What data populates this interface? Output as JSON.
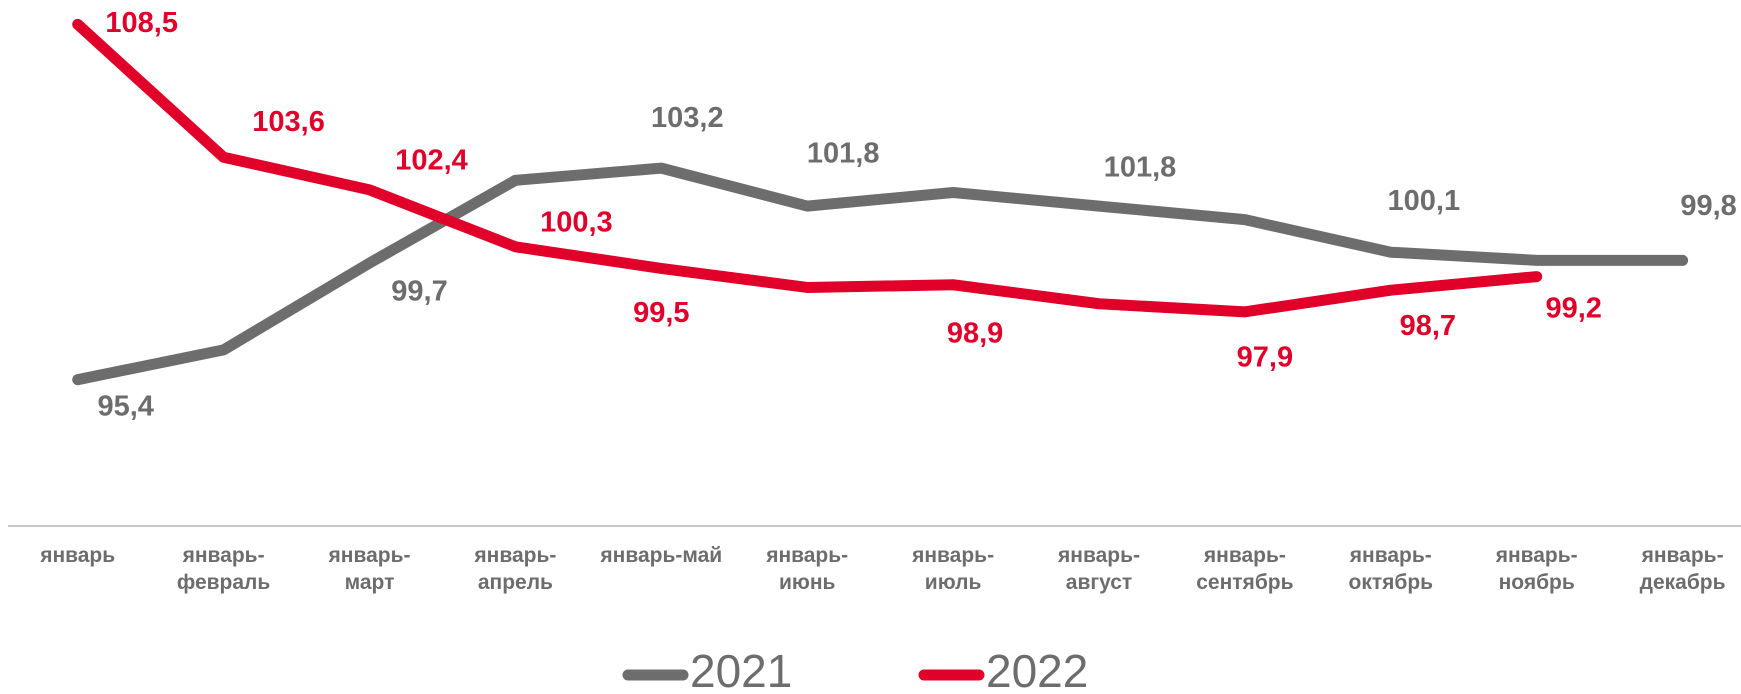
{
  "chart_data": {
    "type": "line",
    "categories": [
      "январь",
      "январь-февраль",
      "январь-март",
      "январь-апрель",
      "январь-май",
      "январь-июнь",
      "январь-июль",
      "январь-август",
      "январь-сентябрь",
      "январь-октябрь",
      "январь-ноябрь",
      "январь-декабрь"
    ],
    "ylim": [
      92,
      109
    ],
    "series": [
      {
        "name": "2021",
        "color": "#6d6d6d",
        "values": [
          95.4,
          96.5,
          99.7,
          102.75,
          103.2,
          101.8,
          102.3,
          101.8,
          101.3,
          100.1,
          99.8,
          99.8
        ],
        "value_labels": [
          "95,4",
          null,
          "99,7",
          null,
          "103,2",
          "101,8",
          null,
          "101,8",
          null,
          "100,1",
          null,
          "99,8"
        ]
      },
      {
        "name": "2022",
        "color": "#e0002a",
        "values": [
          108.5,
          103.6,
          102.4,
          100.3,
          99.5,
          98.8,
          98.9,
          98.2,
          97.9,
          98.7,
          99.2,
          null
        ],
        "value_labels": [
          "108,5",
          "103,6",
          "102,4",
          "100,3",
          "99,5",
          null,
          "98,9",
          null,
          "97,9",
          "98,7",
          "99,2",
          null
        ]
      }
    ]
  }
}
